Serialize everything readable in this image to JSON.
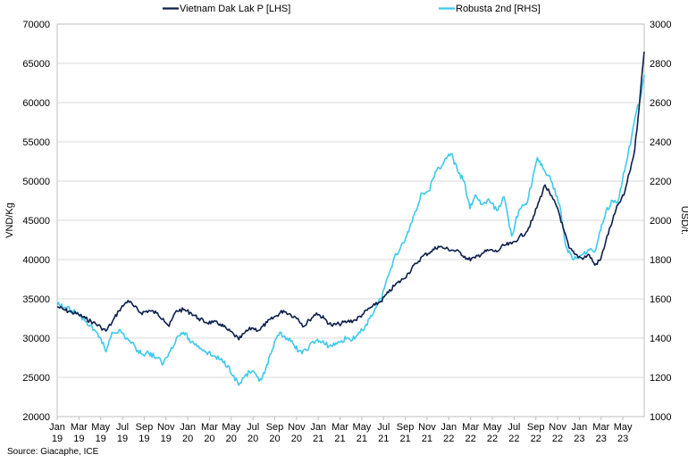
{
  "chart_data": {
    "type": "line",
    "legend_placement": "top",
    "grid": true,
    "ylabel_left": "VND/Kg",
    "ylabel_right": "USD/t.",
    "ylim_left": [
      20000,
      70000
    ],
    "ylim_right": [
      1000,
      3000
    ],
    "yticks_left": [
      "20000",
      "25000",
      "30000",
      "35000",
      "40000",
      "45000",
      "50000",
      "55000",
      "60000",
      "65000",
      "70000"
    ],
    "yticks_right": [
      "1000",
      "1200",
      "1400",
      "1600",
      "1800",
      "2000",
      "2200",
      "2400",
      "2600",
      "2800",
      "3000"
    ],
    "xticks": [
      {
        "m": "Jan",
        "y": "19"
      },
      {
        "m": "Mar",
        "y": "19"
      },
      {
        "m": "May",
        "y": "19"
      },
      {
        "m": "Jul",
        "y": "19"
      },
      {
        "m": "Sep",
        "y": "19"
      },
      {
        "m": "Nov",
        "y": "19"
      },
      {
        "m": "Jan",
        "y": "20"
      },
      {
        "m": "Mar",
        "y": "20"
      },
      {
        "m": "May",
        "y": "20"
      },
      {
        "m": "Jul",
        "y": "20"
      },
      {
        "m": "Sep",
        "y": "20"
      },
      {
        "m": "Nov",
        "y": "20"
      },
      {
        "m": "Jan",
        "y": "21"
      },
      {
        "m": "Mar",
        "y": "21"
      },
      {
        "m": "May",
        "y": "21"
      },
      {
        "m": "Jul",
        "y": "21"
      },
      {
        "m": "Sep",
        "y": "21"
      },
      {
        "m": "Nov",
        "y": "21"
      },
      {
        "m": "Jan",
        "y": "22"
      },
      {
        "m": "Mar",
        "y": "22"
      },
      {
        "m": "May",
        "y": "22"
      },
      {
        "m": "Jul",
        "y": "22"
      },
      {
        "m": "Sep",
        "y": "22"
      },
      {
        "m": "Nov",
        "y": "22"
      },
      {
        "m": "Jan",
        "y": "23"
      },
      {
        "m": "Mar",
        "y": "23"
      },
      {
        "m": "May",
        "y": "23"
      }
    ],
    "x_start": "2019-01-01",
    "x_end": "2023-06-05",
    "series": [
      {
        "name": "Vietnam Dak Lak P [LHS]",
        "axis": "left",
        "color": "#0d1f4c",
        "points": [
          [
            "2019-01-01",
            34000
          ],
          [
            "2019-01-20",
            33600
          ],
          [
            "2019-02-10",
            33300
          ],
          [
            "2019-03-01",
            33000
          ],
          [
            "2019-03-20",
            32500
          ],
          [
            "2019-04-10",
            32000
          ],
          [
            "2019-05-01",
            31400
          ],
          [
            "2019-05-15",
            30900
          ],
          [
            "2019-06-01",
            32000
          ],
          [
            "2019-06-20",
            33500
          ],
          [
            "2019-07-05",
            34300
          ],
          [
            "2019-07-15",
            34800
          ],
          [
            "2019-08-01",
            34000
          ],
          [
            "2019-08-20",
            33200
          ],
          [
            "2019-09-10",
            33500
          ],
          [
            "2019-10-01",
            33200
          ],
          [
            "2019-10-20",
            32500
          ],
          [
            "2019-11-05",
            31500
          ],
          [
            "2019-11-25",
            33500
          ],
          [
            "2019-12-15",
            33600
          ],
          [
            "2020-01-05",
            33200
          ],
          [
            "2020-01-25",
            32500
          ],
          [
            "2020-02-15",
            32000
          ],
          [
            "2020-03-05",
            32000
          ],
          [
            "2020-03-25",
            31800
          ],
          [
            "2020-04-15",
            31000
          ],
          [
            "2020-05-01",
            30500
          ],
          [
            "2020-05-15",
            29800
          ],
          [
            "2020-06-01",
            30700
          ],
          [
            "2020-06-20",
            31300
          ],
          [
            "2020-07-10",
            31000
          ],
          [
            "2020-08-01",
            32000
          ],
          [
            "2020-08-25",
            32800
          ],
          [
            "2020-09-15",
            33500
          ],
          [
            "2020-10-05",
            33000
          ],
          [
            "2020-10-25",
            32500
          ],
          [
            "2020-11-10",
            31500
          ],
          [
            "2020-11-25",
            32300
          ],
          [
            "2020-12-15",
            33200
          ],
          [
            "2021-01-05",
            32500
          ],
          [
            "2021-01-25",
            31600
          ],
          [
            "2021-02-15",
            31800
          ],
          [
            "2021-03-10",
            32100
          ],
          [
            "2021-04-01",
            32300
          ],
          [
            "2021-04-20",
            33000
          ],
          [
            "2021-05-10",
            33800
          ],
          [
            "2021-05-25",
            34200
          ],
          [
            "2021-06-10",
            34700
          ],
          [
            "2021-07-01",
            35800
          ],
          [
            "2021-07-20",
            36800
          ],
          [
            "2021-08-10",
            37500
          ],
          [
            "2021-08-25",
            38300
          ],
          [
            "2021-09-15",
            39500
          ],
          [
            "2021-10-05",
            40500
          ],
          [
            "2021-10-25",
            41000
          ],
          [
            "2021-11-15",
            41700
          ],
          [
            "2021-12-05",
            41400
          ],
          [
            "2021-12-25",
            41200
          ],
          [
            "2022-01-15",
            40900
          ],
          [
            "2022-02-05",
            40000
          ],
          [
            "2022-02-25",
            40200
          ],
          [
            "2022-03-15",
            40800
          ],
          [
            "2022-04-05",
            41200
          ],
          [
            "2022-04-25",
            41000
          ],
          [
            "2022-05-15",
            41800
          ],
          [
            "2022-06-05",
            42000
          ],
          [
            "2022-06-25",
            42800
          ],
          [
            "2022-07-15",
            43500
          ],
          [
            "2022-08-01",
            45000
          ],
          [
            "2022-08-20",
            47500
          ],
          [
            "2022-09-05",
            49500
          ],
          [
            "2022-09-20",
            48200
          ],
          [
            "2022-10-10",
            46500
          ],
          [
            "2022-10-25",
            44000
          ],
          [
            "2022-11-10",
            41500
          ],
          [
            "2022-11-25",
            40700
          ],
          [
            "2022-12-15",
            40200
          ],
          [
            "2023-01-05",
            40600
          ],
          [
            "2023-01-20",
            39300
          ],
          [
            "2023-02-05",
            40000
          ],
          [
            "2023-02-20",
            42500
          ],
          [
            "2023-03-10",
            45000
          ],
          [
            "2023-03-25",
            47000
          ],
          [
            "2023-04-10",
            48200
          ],
          [
            "2023-04-25",
            51000
          ],
          [
            "2023-05-10",
            54000
          ],
          [
            "2023-05-25",
            61000
          ],
          [
            "2023-06-05",
            66500
          ]
        ]
      },
      {
        "name": "Robusta 2nd [RHS]",
        "axis": "right",
        "color": "#3fc9ec",
        "points": [
          [
            "2019-01-01",
            1570
          ],
          [
            "2019-01-20",
            1555
          ],
          [
            "2019-02-10",
            1540
          ],
          [
            "2019-03-01",
            1520
          ],
          [
            "2019-03-20",
            1485
          ],
          [
            "2019-04-10",
            1440
          ],
          [
            "2019-05-01",
            1400
          ],
          [
            "2019-05-15",
            1330
          ],
          [
            "2019-06-01",
            1430
          ],
          [
            "2019-06-20",
            1440
          ],
          [
            "2019-07-05",
            1410
          ],
          [
            "2019-07-20",
            1385
          ],
          [
            "2019-08-05",
            1350
          ],
          [
            "2019-08-20",
            1320
          ],
          [
            "2019-09-10",
            1325
          ],
          [
            "2019-10-01",
            1300
          ],
          [
            "2019-10-20",
            1270
          ],
          [
            "2019-11-05",
            1325
          ],
          [
            "2019-11-25",
            1400
          ],
          [
            "2019-12-15",
            1430
          ],
          [
            "2020-01-05",
            1380
          ],
          [
            "2020-01-25",
            1360
          ],
          [
            "2020-02-15",
            1330
          ],
          [
            "2020-03-05",
            1310
          ],
          [
            "2020-03-25",
            1290
          ],
          [
            "2020-04-15",
            1260
          ],
          [
            "2020-05-01",
            1210
          ],
          [
            "2020-05-15",
            1160
          ],
          [
            "2020-06-01",
            1210
          ],
          [
            "2020-06-20",
            1230
          ],
          [
            "2020-07-10",
            1180
          ],
          [
            "2020-07-25",
            1220
          ],
          [
            "2020-08-15",
            1340
          ],
          [
            "2020-09-05",
            1430
          ],
          [
            "2020-09-25",
            1400
          ],
          [
            "2020-10-15",
            1360
          ],
          [
            "2020-11-05",
            1320
          ],
          [
            "2020-11-25",
            1360
          ],
          [
            "2020-12-15",
            1390
          ],
          [
            "2021-01-05",
            1370
          ],
          [
            "2021-01-25",
            1360
          ],
          [
            "2021-02-15",
            1380
          ],
          [
            "2021-03-10",
            1400
          ],
          [
            "2021-03-30",
            1395
          ],
          [
            "2021-04-20",
            1440
          ],
          [
            "2021-05-10",
            1500
          ],
          [
            "2021-05-25",
            1550
          ],
          [
            "2021-06-10",
            1600
          ],
          [
            "2021-07-01",
            1720
          ],
          [
            "2021-07-20",
            1830
          ],
          [
            "2021-08-01",
            1850
          ],
          [
            "2021-08-20",
            1920
          ],
          [
            "2021-09-10",
            2030
          ],
          [
            "2021-10-01",
            2140
          ],
          [
            "2021-10-20",
            2150
          ],
          [
            "2021-11-10",
            2250
          ],
          [
            "2021-12-01",
            2300
          ],
          [
            "2021-12-20",
            2340
          ],
          [
            "2022-01-10",
            2240
          ],
          [
            "2022-01-25",
            2200
          ],
          [
            "2022-02-10",
            2060
          ],
          [
            "2022-02-25",
            2130
          ],
          [
            "2022-03-15",
            2080
          ],
          [
            "2022-04-05",
            2100
          ],
          [
            "2022-04-25",
            2050
          ],
          [
            "2022-05-15",
            2120
          ],
          [
            "2022-06-05",
            1920
          ],
          [
            "2022-06-25",
            2050
          ],
          [
            "2022-07-15",
            2080
          ],
          [
            "2022-08-01",
            2200
          ],
          [
            "2022-08-15",
            2320
          ],
          [
            "2022-09-05",
            2250
          ],
          [
            "2022-09-25",
            2190
          ],
          [
            "2022-10-15",
            2080
          ],
          [
            "2022-11-01",
            1870
          ],
          [
            "2022-11-20",
            1800
          ],
          [
            "2022-12-10",
            1820
          ],
          [
            "2023-01-01",
            1850
          ],
          [
            "2023-01-20",
            1840
          ],
          [
            "2023-02-05",
            1950
          ],
          [
            "2023-02-20",
            2050
          ],
          [
            "2023-03-10",
            2100
          ],
          [
            "2023-03-25",
            2100
          ],
          [
            "2023-04-15",
            2280
          ],
          [
            "2023-05-01",
            2420
          ],
          [
            "2023-05-15",
            2560
          ],
          [
            "2023-05-28",
            2640
          ],
          [
            "2023-06-05",
            2740
          ]
        ]
      }
    ]
  },
  "source": "Source: Giacaphe, ICE"
}
